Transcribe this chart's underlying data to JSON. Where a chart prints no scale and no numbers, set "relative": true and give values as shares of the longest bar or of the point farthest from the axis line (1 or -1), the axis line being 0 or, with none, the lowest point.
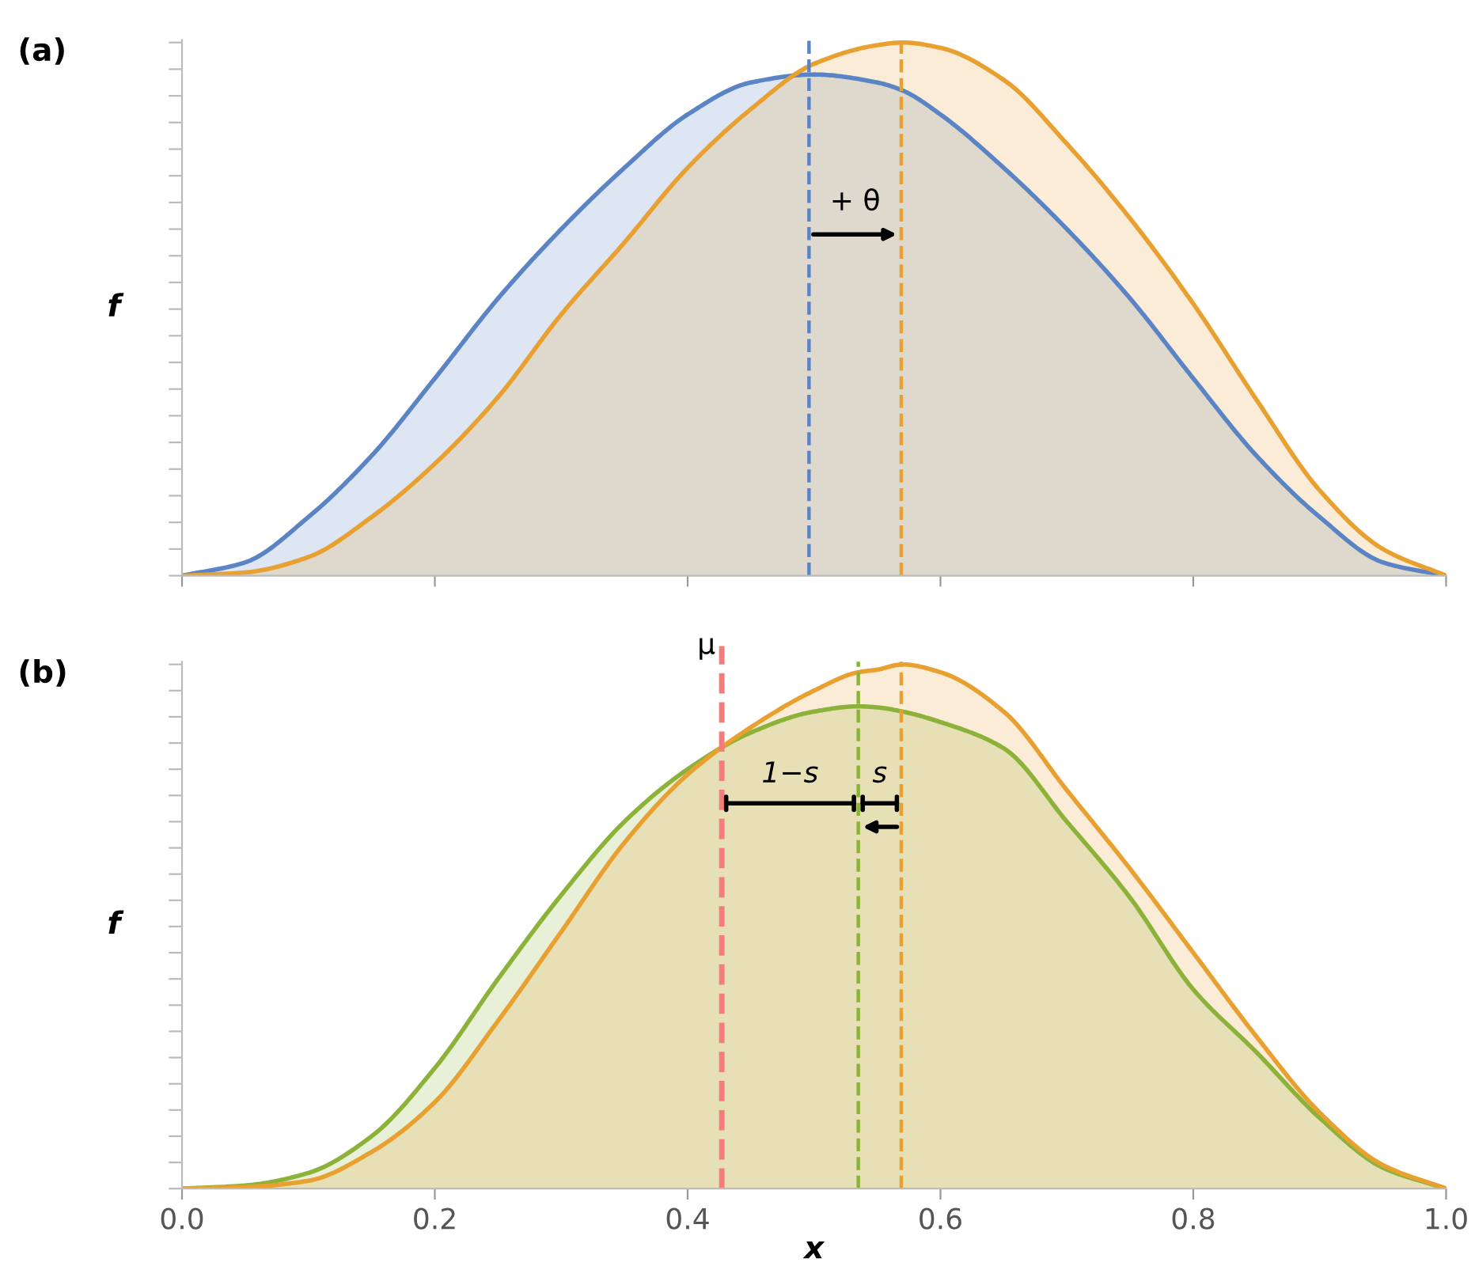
{
  "chart_data": [
    {
      "type": "area",
      "relative": true,
      "ylabel": "f",
      "tick_labels": false,
      "xlim": [
        0,
        1
      ],
      "xticks": [
        0,
        0.2,
        0.4,
        0.6,
        0.8,
        1
      ],
      "x": [
        0,
        0.05,
        0.1,
        0.15,
        0.2,
        0.25,
        0.3,
        0.35,
        0.4,
        0.45,
        0.5,
        0.55,
        0.57,
        0.6,
        0.65,
        0.7,
        0.75,
        0.8,
        0.85,
        0.9,
        0.95,
        1
      ],
      "series": [
        {
          "color": "#5b84c4",
          "values": [
            0,
            0.025,
            0.11,
            0.225,
            0.37,
            0.52,
            0.65,
            0.765,
            0.865,
            0.925,
            0.94,
            0.925,
            0.91,
            0.865,
            0.765,
            0.65,
            0.52,
            0.37,
            0.225,
            0.11,
            0.025,
            0
          ]
        },
        {
          "color": "#e8a030",
          "values": [
            0,
            0.006,
            0.035,
            0.11,
            0.21,
            0.335,
            0.49,
            0.625,
            0.765,
            0.875,
            0.96,
            0.995,
            1.0,
            0.99,
            0.93,
            0.81,
            0.67,
            0.51,
            0.33,
            0.16,
            0.05,
            0
          ]
        }
      ],
      "ref_lines": [
        {
          "axis": "x",
          "value": 0.496,
          "color": "#5b84c4",
          "line_style": "dashed"
        },
        {
          "axis": "x",
          "value": 0.569,
          "color": "#e8a030",
          "line_style": "dashed"
        }
      ],
      "annotations": [
        "(a)",
        "+ θ"
      ]
    },
    {
      "type": "area",
      "relative": true,
      "ylabel": "f",
      "xlabel": "x",
      "tick_labels": "x",
      "xlim": [
        0,
        1
      ],
      "xticks": [
        {
          "value": 0,
          "label": "0.0"
        },
        0.2,
        0.4,
        0.6,
        0.8,
        {
          "value": 1,
          "label": "1.0"
        }
      ],
      "x": [
        0,
        0.05,
        0.1,
        0.15,
        0.2,
        0.25,
        0.3,
        0.35,
        0.4,
        0.45,
        0.5,
        0.535,
        0.55,
        0.57,
        0.6,
        0.65,
        0.7,
        0.75,
        0.8,
        0.85,
        0.9,
        0.95,
        1
      ],
      "series": [
        {
          "color": "#8db23a",
          "values": [
            0,
            0.006,
            0.03,
            0.1,
            0.23,
            0.4,
            0.56,
            0.7,
            0.8,
            0.87,
            0.91,
            0.92,
            0.918,
            0.91,
            0.89,
            0.84,
            0.7,
            0.555,
            0.38,
            0.26,
            0.135,
            0.04,
            0
          ]
        },
        {
          "color": "#e8a030",
          "values": [
            0,
            0.003,
            0.015,
            0.07,
            0.165,
            0.32,
            0.49,
            0.66,
            0.79,
            0.88,
            0.95,
            0.985,
            0.99,
            1.0,
            0.985,
            0.91,
            0.76,
            0.61,
            0.45,
            0.29,
            0.145,
            0.045,
            0
          ]
        }
      ],
      "ref_lines": [
        {
          "axis": "x",
          "value": 0.427,
          "label": "μ",
          "color": "#f47c7c",
          "line_style": "dashed"
        },
        {
          "axis": "x",
          "value": 0.535,
          "color": "#8db23a",
          "line_style": "dashed"
        },
        {
          "axis": "x",
          "value": 0.569,
          "color": "#e8a030",
          "line_style": "dashed"
        }
      ],
      "annotations": [
        "(b)",
        "1−s",
        "s"
      ]
    }
  ]
}
